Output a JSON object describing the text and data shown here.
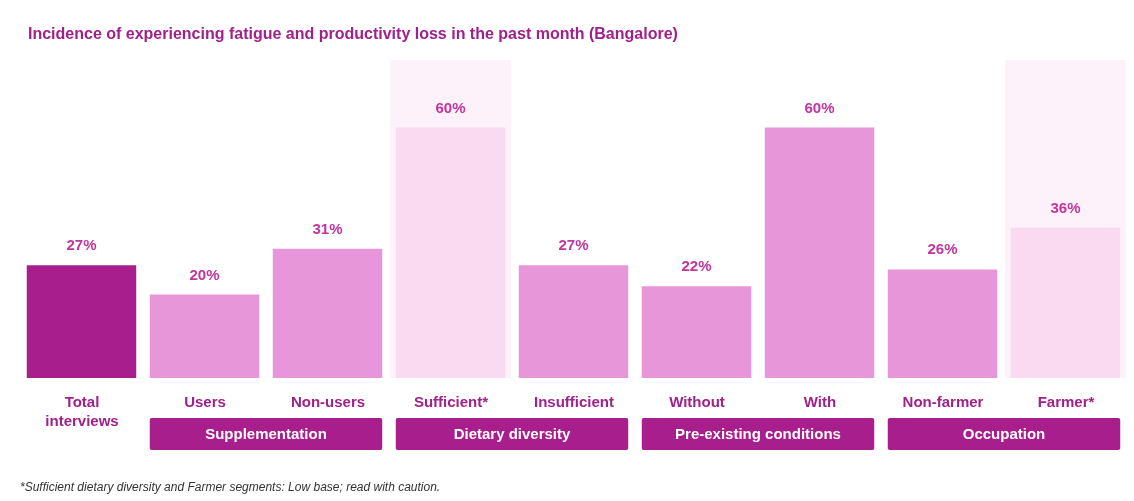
{
  "chart_data": {
    "type": "bar",
    "title": "Incidence of experiencing fatigue and productivity loss in the past month (Bangalore)",
    "categories": [
      "Total interviews",
      "Users",
      "Non-users",
      "Sufficient*",
      "Insufficient",
      "Without",
      "With",
      "Non-farmer",
      "Farmer*"
    ],
    "values": [
      27,
      20,
      31,
      60,
      27,
      22,
      60,
      26,
      36
    ],
    "value_labels": [
      "27%",
      "20%",
      "31%",
      "60%",
      "27%",
      "22%",
      "60%",
      "26%",
      "36%"
    ],
    "colors": [
      "#a81e8c",
      "#e896da",
      "#e896da",
      "#fadaf0",
      "#e896da",
      "#e896da",
      "#e896da",
      "#e896da",
      "#fadaf0"
    ],
    "bands": [
      {
        "axis": "x",
        "from": "Sufficient*",
        "to": "Sufficient*",
        "color": "#fdf1fa"
      },
      {
        "axis": "x",
        "from": "Farmer*",
        "to": "Farmer*",
        "color": "#fdf1fa"
      }
    ],
    "annotations": [
      "Supplementation",
      "Dietary diversity",
      "Pre-existing conditions",
      "Occupation",
      "*Sufficient dietary diversity and Farmer segments: Low base; read with caution."
    ]
  }
}
